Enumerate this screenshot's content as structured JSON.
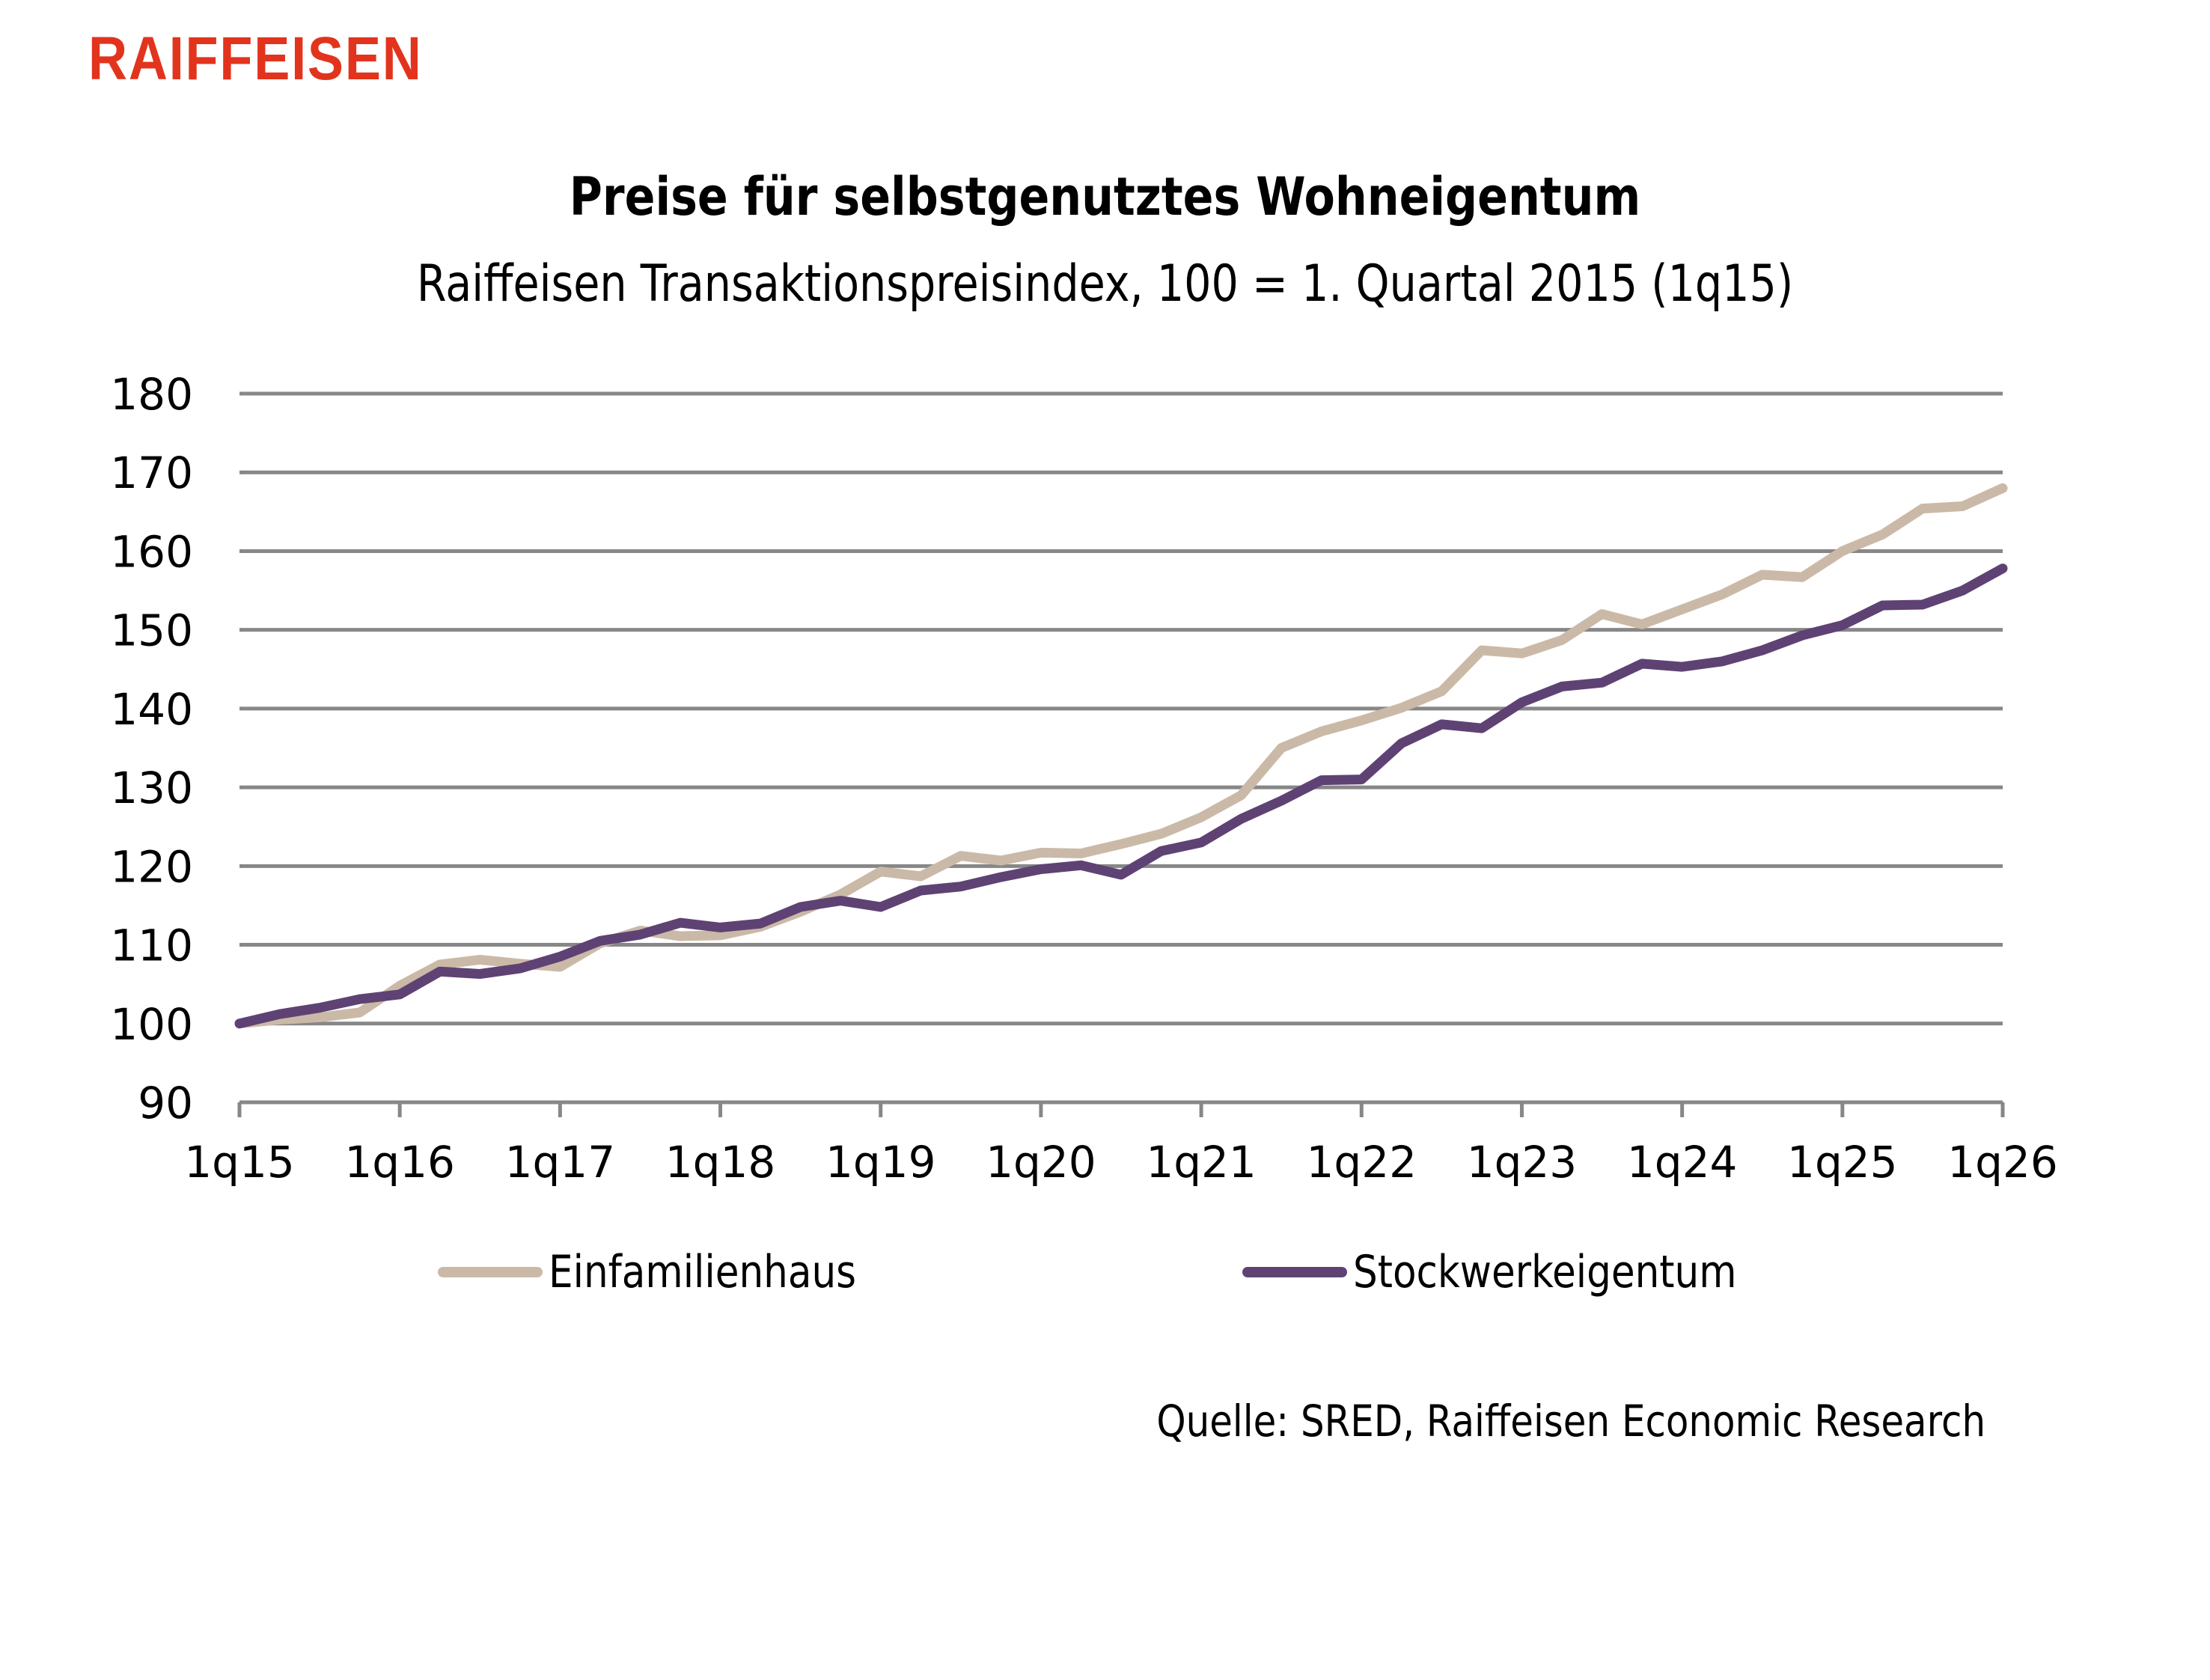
{
  "brand": {
    "logo_text": "RAIFFEISEN",
    "logo_color": "#E2341D"
  },
  "chart_data": {
    "type": "line",
    "title": "Preise für selbstgenutztes Wohneigentum",
    "subtitle": "Raiffeisen Transaktionspreisindex, 100 = 1. Quartal 2015 (1q15)",
    "xlabel": "",
    "ylabel": "",
    "ylim": [
      90,
      180
    ],
    "yticks": [
      90,
      100,
      110,
      120,
      130,
      140,
      150,
      160,
      170,
      180
    ],
    "grid": true,
    "legend_position": "bottom",
    "x": [
      "1q15",
      "2q15",
      "3q15",
      "4q15",
      "1q16",
      "2q16",
      "3q16",
      "4q16",
      "1q17",
      "2q17",
      "3q17",
      "4q17",
      "1q18",
      "2q18",
      "3q18",
      "4q18",
      "1q19",
      "2q19",
      "3q19",
      "4q19",
      "1q20",
      "2q20",
      "3q20",
      "4q20",
      "1q21",
      "2q21",
      "3q21",
      "4q21",
      "1q22",
      "2q22",
      "3q22",
      "4q22",
      "1q23",
      "2q23",
      "3q23",
      "4q23",
      "1q24",
      "2q24",
      "3q24",
      "4q24",
      "1q25",
      "2q25",
      "3q25",
      "4q25",
      "1q26"
    ],
    "xtick_labels": [
      "1q15",
      "1q16",
      "1q17",
      "1q18",
      "1q19",
      "1q20",
      "1q21",
      "1q22",
      "1q23",
      "1q24",
      "1q25",
      "1q26"
    ],
    "series": [
      {
        "name": "Einfamilienhaus",
        "color": "#CBB9A8",
        "values": [
          100.0,
          100.5,
          100.8,
          101.4,
          104.8,
          107.5,
          108.1,
          107.6,
          107.2,
          110.2,
          111.8,
          111.1,
          111.2,
          112.3,
          114.2,
          116.4,
          119.3,
          118.7,
          121.3,
          120.7,
          121.7,
          121.6,
          122.8,
          124.1,
          126.2,
          129.0,
          135.0,
          137.1,
          138.5,
          140.1,
          142.2,
          147.4,
          147.0,
          148.7,
          152.0,
          150.7,
          152.6,
          154.5,
          157.0,
          156.7,
          160.0,
          162.1,
          165.4,
          165.7,
          168.0
        ]
      },
      {
        "name": "Stockwerkeigentum",
        "color": "#5F4274",
        "values": [
          100.0,
          101.2,
          102.0,
          103.1,
          103.7,
          106.6,
          106.3,
          107.0,
          108.5,
          110.5,
          111.3,
          112.8,
          112.2,
          112.7,
          114.8,
          115.6,
          114.8,
          116.9,
          117.4,
          118.6,
          119.6,
          120.1,
          118.9,
          121.9,
          123.0,
          126.0,
          128.3,
          130.9,
          131.0,
          135.6,
          138.0,
          137.5,
          140.8,
          142.8,
          143.3,
          145.7,
          145.3,
          146.0,
          147.4,
          149.3,
          150.6,
          153.1,
          153.2,
          155.0,
          157.8
        ]
      }
    ],
    "grid_color": "#878787",
    "source": "Quelle: SRED, Raiffeisen Economic Research"
  }
}
